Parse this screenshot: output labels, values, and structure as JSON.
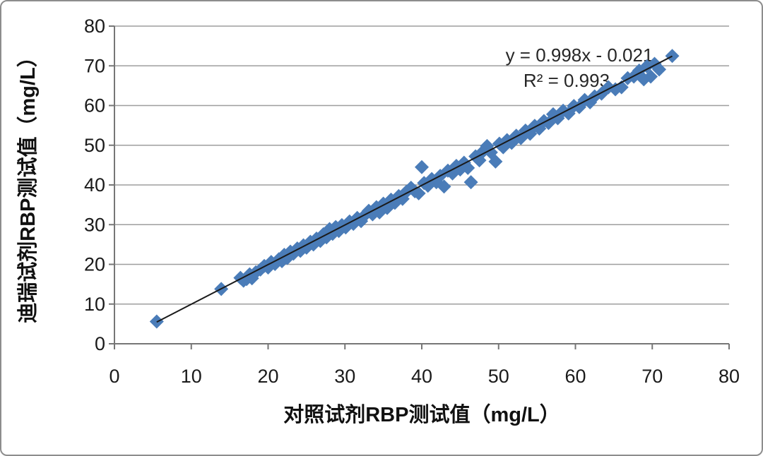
{
  "frame": {
    "background": "#ffffff",
    "border_color": "#8d8d8d"
  },
  "chart_data": {
    "type": "scatter",
    "title": "",
    "xlabel": "对照试剂RBP测试值（mg/L）",
    "ylabel": "迪瑞试剂RBP测试值（mg/L）",
    "xlim": [
      0,
      80
    ],
    "ylim": [
      0,
      80
    ],
    "xticks": [
      0,
      10,
      20,
      30,
      40,
      50,
      60,
      70,
      80
    ],
    "yticks": [
      0,
      10,
      20,
      30,
      40,
      50,
      60,
      70,
      80
    ],
    "grid": "horizontal-only",
    "legend": "none",
    "marker": {
      "shape": "diamond",
      "color": "#4a7cb8",
      "half_size": 10
    },
    "trendline": {
      "slope": 0.998,
      "intercept": -0.021,
      "x_start": 5.5,
      "x_end": 72.6,
      "color": "#1a1a1a"
    },
    "annotation": {
      "equation": "y = 0.998x - 0.021",
      "r_squared": "R² = 0.993"
    },
    "colors": {
      "grid": "#9e9e9e",
      "axis": "#767676",
      "tick_text": "#1a1a1a"
    },
    "points": [
      [
        5.5,
        5.6
      ],
      [
        13.9,
        13.8
      ],
      [
        16.4,
        16.6
      ],
      [
        16.8,
        15.9
      ],
      [
        17.2,
        16.3
      ],
      [
        17.6,
        17.5
      ],
      [
        17.9,
        16.5
      ],
      [
        18.4,
        18.0
      ],
      [
        19.0,
        18.7
      ],
      [
        19.5,
        19.6
      ],
      [
        20.0,
        19.2
      ],
      [
        20.4,
        20.6
      ],
      [
        20.9,
        20.1
      ],
      [
        21.4,
        21.3
      ],
      [
        21.8,
        20.8
      ],
      [
        22.1,
        22.4
      ],
      [
        22.5,
        21.6
      ],
      [
        22.9,
        23.2
      ],
      [
        23.3,
        22.7
      ],
      [
        23.8,
        24.0
      ],
      [
        24.2,
        23.4
      ],
      [
        24.6,
        24.8
      ],
      [
        25.0,
        24.2
      ],
      [
        25.5,
        25.7
      ],
      [
        25.9,
        25.0
      ],
      [
        26.3,
        26.5
      ],
      [
        26.8,
        25.9
      ],
      [
        27.2,
        27.6
      ],
      [
        27.6,
        26.8
      ],
      [
        28.0,
        28.9
      ],
      [
        28.4,
        27.7
      ],
      [
        28.8,
        29.4
      ],
      [
        29.2,
        28.4
      ],
      [
        29.6,
        29.9
      ],
      [
        30.1,
        29.3
      ],
      [
        30.6,
        30.8
      ],
      [
        31.1,
        30.2
      ],
      [
        31.6,
        31.7
      ],
      [
        32.1,
        30.9
      ],
      [
        32.6,
        32.4
      ],
      [
        33.1,
        33.5
      ],
      [
        33.6,
        32.6
      ],
      [
        34.1,
        34.4
      ],
      [
        34.5,
        33.1
      ],
      [
        35.0,
        35.3
      ],
      [
        35.5,
        34.2
      ],
      [
        36.0,
        36.3
      ],
      [
        36.5,
        35.5
      ],
      [
        37.0,
        37.2
      ],
      [
        37.5,
        36.5
      ],
      [
        38.0,
        38.3
      ],
      [
        38.6,
        39.3
      ],
      [
        39.1,
        38.4
      ],
      [
        39.6,
        37.9
      ],
      [
        40.0,
        44.5
      ],
      [
        40.3,
        40.5
      ],
      [
        40.8,
        39.8
      ],
      [
        41.3,
        41.5
      ],
      [
        41.9,
        40.7
      ],
      [
        42.4,
        42.3
      ],
      [
        42.9,
        39.6
      ],
      [
        43.4,
        43.6
      ],
      [
        44.0,
        42.9
      ],
      [
        44.5,
        44.8
      ],
      [
        45.0,
        43.9
      ],
      [
        45.5,
        45.6
      ],
      [
        46.0,
        44.3
      ],
      [
        46.4,
        40.7
      ],
      [
        47.0,
        47.2
      ],
      [
        47.5,
        46.2
      ],
      [
        48.0,
        48.5
      ],
      [
        48.5,
        49.8
      ],
      [
        49.0,
        48.2
      ],
      [
        49.6,
        45.9
      ],
      [
        50.1,
        50.4
      ],
      [
        50.6,
        49.5
      ],
      [
        51.1,
        51.3
      ],
      [
        51.7,
        50.6
      ],
      [
        52.3,
        52.4
      ],
      [
        52.9,
        51.8
      ],
      [
        53.5,
        53.7
      ],
      [
        54.1,
        52.9
      ],
      [
        54.7,
        54.9
      ],
      [
        55.3,
        54.2
      ],
      [
        55.9,
        56.1
      ],
      [
        56.5,
        55.6
      ],
      [
        57.1,
        57.8
      ],
      [
        57.7,
        56.8
      ],
      [
        58.4,
        58.7
      ],
      [
        59.1,
        58.0
      ],
      [
        59.8,
        59.9
      ],
      [
        60.5,
        59.6
      ],
      [
        61.2,
        61.4
      ],
      [
        61.9,
        60.8
      ],
      [
        62.5,
        62.3
      ],
      [
        63.4,
        63.0
      ],
      [
        64.3,
        64.6
      ],
      [
        65.2,
        64.1
      ],
      [
        66.0,
        64.6
      ],
      [
        66.8,
        66.9
      ],
      [
        67.6,
        67.3
      ],
      [
        68.3,
        68.8
      ],
      [
        68.9,
        66.6
      ],
      [
        69.3,
        69.9
      ],
      [
        69.8,
        67.3
      ],
      [
        70.3,
        70.5
      ],
      [
        70.9,
        69.1
      ],
      [
        72.6,
        72.5
      ]
    ]
  }
}
